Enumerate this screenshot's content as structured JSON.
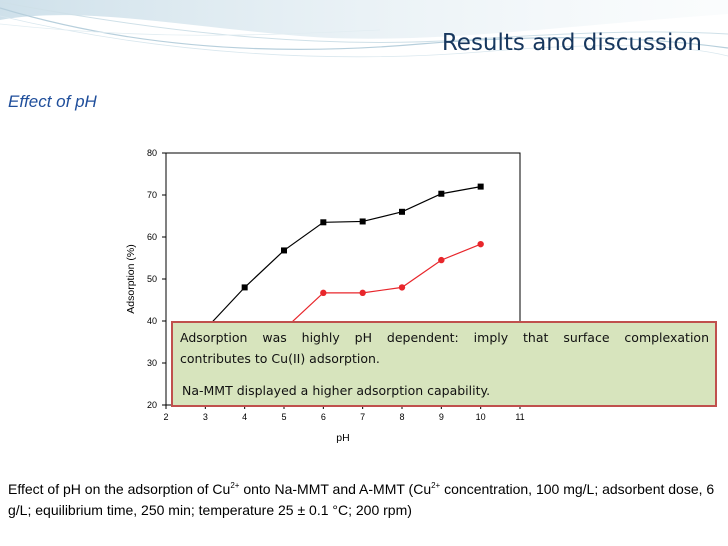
{
  "slide": {
    "title": "Results and discussion",
    "heading": "Effect of pH"
  },
  "colors": {
    "title": "#17375e",
    "heading": "#1f4e9b",
    "series_na_mmt": "#000000",
    "series_a_mmt": "#e8262b",
    "note_fill": "#d7e4bd",
    "note_border": "#c0504d"
  },
  "note": {
    "line1": "Adsorption was highly pH dependent: imply that surface complexation",
    "line2": "contributes to Cu(II) adsorption.",
    "line3": "Na-MMT displayed a higher adsorption capability."
  },
  "caption": {
    "p1": "Effect of pH on the adsorption of Cu",
    "sup1": "2+",
    "p2": " onto Na-MMT and A-MMT (Cu",
    "sup2": "2+",
    "p3": " concentration, 100 mg/L; adsorbent dose, 6 g/L; equilibrium time, 250 min; temperature 25 ± 0.1 °C; 200 rpm)"
  },
  "chart_data": {
    "type": "line",
    "xlabel": "pH",
    "ylabel": "Adsorption (%)",
    "xlim": [
      2,
      11
    ],
    "ylim": [
      20,
      80
    ],
    "x_ticks": [
      2,
      3,
      4,
      5,
      6,
      7,
      8,
      9,
      10,
      11
    ],
    "y_ticks": [
      20,
      30,
      40,
      50,
      60,
      70,
      80
    ],
    "grid": false,
    "series": [
      {
        "marker": "square",
        "color": "#000000",
        "x": [
          3,
          4,
          5,
          6,
          7,
          8,
          9,
          10
        ],
        "y": [
          38,
          48,
          56.8,
          63.5,
          63.7,
          66,
          70.3,
          72
        ]
      },
      {
        "marker": "circle",
        "color": "#e8262b",
        "x": [
          5,
          6,
          7,
          8,
          9,
          10
        ],
        "y": [
          38,
          46.7,
          46.7,
          48,
          54.5,
          58.3
        ]
      }
    ]
  }
}
